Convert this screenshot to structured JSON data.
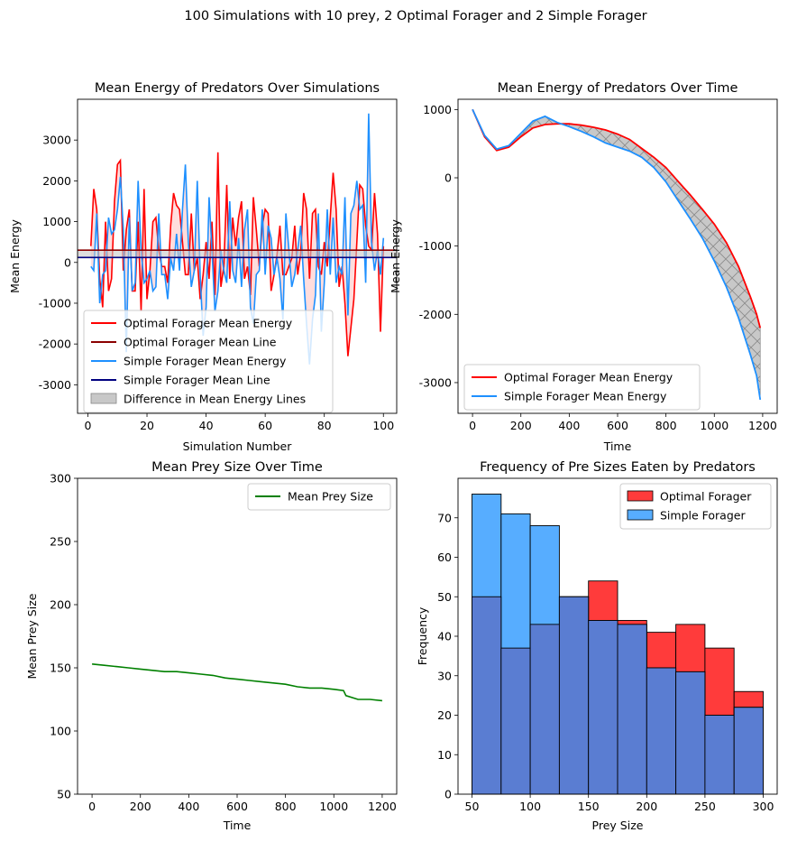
{
  "figure": {
    "suptitle": "100 Simulations with 10 prey, 2 Optimal Forager and 2 Simple Forager"
  },
  "colors": {
    "optimal": "#ff0000",
    "optimal_mean": "#8b0000",
    "simple": "#1e90ff",
    "simple_mean": "#000080",
    "diff_fill": "#c8c8c8",
    "prey": "#008000",
    "hist_optimal": "#ff3b3b",
    "hist_simple": "#57adff",
    "hist_overlap": "#5a7dd2"
  },
  "chart_data": [
    {
      "type": "line",
      "title": "Mean Energy of Predators Over Simulations",
      "xlabel": "Simulation Number",
      "ylabel": "Mean Energy",
      "xlim": [
        -3.5,
        104.5
      ],
      "ylim": [
        -3700,
        4000
      ],
      "xticks": [
        0,
        20,
        40,
        60,
        80,
        100
      ],
      "yticks": [
        -3000,
        -2000,
        -1000,
        0,
        1000,
        2000,
        3000
      ],
      "legend_position": "lower-left",
      "legend": [
        "Optimal Forager Mean Energy",
        "Optimal Forager Mean Line",
        "Simple Forager Mean Energy",
        "Simple Forager Mean Line",
        "Difference in Mean Energy Lines"
      ],
      "x_start": 1,
      "series": [
        {
          "name": "Optimal Forager Mean Energy",
          "values": [
            400,
            1800,
            1300,
            -400,
            -1100,
            1000,
            -700,
            -400,
            1500,
            2400,
            2500,
            -200,
            800,
            1300,
            -700,
            -700,
            1000,
            -1200,
            1800,
            -900,
            -200,
            1000,
            1100,
            300,
            -100,
            -100,
            -500,
            900,
            1700,
            1400,
            1300,
            500,
            -300,
            -300,
            1200,
            -200,
            100,
            -900,
            -300,
            500,
            -400,
            1000,
            -800,
            2700,
            -600,
            -100,
            1900,
            -400,
            1100,
            400,
            1100,
            1500,
            -400,
            -100,
            -800,
            1600,
            800,
            -100,
            900,
            1300,
            1200,
            -700,
            -300,
            200,
            900,
            -300,
            -300,
            -100,
            100,
            900,
            -300,
            200,
            1700,
            1300,
            -400,
            1200,
            1300,
            -100,
            -300,
            500,
            -100,
            1100,
            2200,
            1300,
            -600,
            -100,
            -1000,
            -2300,
            -1600,
            -900,
            500,
            1900,
            1800,
            900,
            400,
            300,
            1700,
            700,
            -1700,
            400
          ]
        },
        {
          "name": "Simple Forager Mean Energy",
          "values": [
            -100,
            -200,
            1200,
            -1000,
            -300,
            -200,
            1100,
            700,
            800,
            1300,
            2100,
            800,
            -2200,
            1100,
            -700,
            -500,
            2000,
            300,
            -500,
            -400,
            -200,
            -700,
            -600,
            1200,
            -300,
            -300,
            -900,
            100,
            -200,
            700,
            -200,
            1300,
            2400,
            500,
            -600,
            -200,
            2000,
            -300,
            -1800,
            -1100,
            1600,
            300,
            -1200,
            -700,
            300,
            -200,
            -500,
            1500,
            -200,
            -500,
            600,
            -600,
            800,
            1300,
            -1100,
            -1500,
            -300,
            -200,
            1300,
            -300,
            900,
            600,
            -300,
            100,
            -400,
            -1400,
            1200,
            300,
            -600,
            -300,
            300,
            900,
            -400,
            -1500,
            -2500,
            -1400,
            -800,
            1200,
            -1700,
            -500,
            1300,
            -300,
            1100,
            -500,
            -100,
            -300,
            1600,
            -1300,
            1200,
            1400,
            2000,
            1300,
            1400,
            -500,
            3650,
            500,
            -200,
            300,
            -300,
            600
          ]
        }
      ],
      "mean_lines": [
        {
          "name": "Optimal Forager Mean Line",
          "value": 300
        },
        {
          "name": "Simple Forager Mean Line",
          "value": 120
        }
      ]
    },
    {
      "type": "line",
      "title": "Mean Energy of Predators Over Time",
      "xlabel": "Time",
      "ylabel": "Mean Energy",
      "xlim": [
        -60,
        1260
      ],
      "ylim": [
        -3450,
        1150
      ],
      "xticks": [
        0,
        200,
        400,
        600,
        800,
        1000,
        1200
      ],
      "yticks": [
        -3000,
        -2000,
        -1000,
        0,
        1000
      ],
      "legend_position": "lower-left",
      "legend": [
        "Optimal Forager Mean Energy",
        "Simple Forager Mean Energy"
      ],
      "x": [
        0,
        50,
        100,
        150,
        200,
        250,
        300,
        350,
        400,
        450,
        500,
        550,
        600,
        650,
        700,
        750,
        800,
        850,
        900,
        950,
        1000,
        1050,
        1100,
        1150,
        1175,
        1190
      ],
      "series": [
        {
          "name": "Optimal Forager Mean Energy",
          "values": [
            1000,
            600,
            400,
            450,
            600,
            730,
            780,
            790,
            790,
            770,
            740,
            700,
            640,
            560,
            430,
            300,
            150,
            -50,
            -250,
            -460,
            -680,
            -950,
            -1300,
            -1750,
            -2000,
            -2200
          ]
        },
        {
          "name": "Simple Forager Mean Energy",
          "values": [
            1000,
            620,
            420,
            470,
            650,
            830,
            900,
            810,
            750,
            680,
            600,
            510,
            450,
            390,
            300,
            150,
            -60,
            -330,
            -600,
            -880,
            -1220,
            -1600,
            -2050,
            -2600,
            -2900,
            -3250
          ]
        }
      ]
    },
    {
      "type": "line",
      "title": "Mean Prey Size Over Time",
      "xlabel": "Time",
      "ylabel": "Mean Prey Size",
      "xlim": [
        -60,
        1260
      ],
      "ylim": [
        50,
        300
      ],
      "xticks": [
        0,
        200,
        400,
        600,
        800,
        1000,
        1200
      ],
      "yticks": [
        50,
        100,
        150,
        200,
        250,
        300
      ],
      "legend_position": "top-right",
      "legend": [
        "Mean Prey Size"
      ],
      "x": [
        0,
        50,
        100,
        150,
        200,
        250,
        300,
        350,
        400,
        450,
        500,
        550,
        600,
        650,
        700,
        750,
        800,
        850,
        900,
        950,
        1000,
        1040,
        1050,
        1100,
        1150,
        1200
      ],
      "series": [
        {
          "name": "Mean Prey Size",
          "values": [
            153,
            152,
            151,
            150,
            149,
            148,
            147,
            147,
            146,
            145,
            144,
            142,
            141,
            140,
            139,
            138,
            137,
            135,
            134,
            134,
            133,
            132,
            128,
            125,
            125,
            124
          ]
        }
      ]
    },
    {
      "type": "bar",
      "title": "Frequency of Pre Sizes Eaten by Predators",
      "xlabel": "Prey Size",
      "ylabel": "Frequency",
      "xlim": [
        38,
        312
      ],
      "ylim": [
        0,
        80
      ],
      "xticks": [
        50,
        100,
        150,
        200,
        250,
        300
      ],
      "yticks": [
        0,
        10,
        20,
        30,
        40,
        50,
        60,
        70
      ],
      "legend_position": "top-right",
      "legend": [
        "Optimal Forager",
        "Simple Forager"
      ],
      "bin_edges": [
        50,
        75,
        100,
        125,
        150,
        175,
        200,
        225,
        250,
        275,
        300
      ],
      "series": [
        {
          "name": "Optimal Forager",
          "values": [
            50,
            37,
            43,
            50,
            54,
            44,
            41,
            43,
            37,
            26
          ]
        },
        {
          "name": "Simple Forager",
          "values": [
            76,
            71,
            68,
            50,
            44,
            43,
            32,
            31,
            20,
            22
          ]
        }
      ]
    }
  ]
}
